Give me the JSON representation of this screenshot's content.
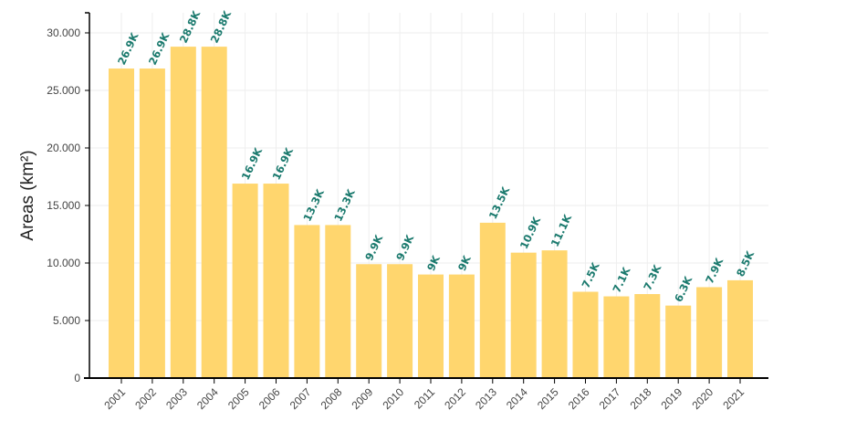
{
  "colors": {
    "bar": "#FFD66E",
    "label": "#1B7A6E",
    "grid": "#eeeeee",
    "axis": "#000000"
  },
  "chart_data": {
    "type": "bar",
    "ylabel": "Areas (km²)",
    "ylim": [
      0,
      32000
    ],
    "yticks": [
      0,
      5000,
      10000,
      15000,
      20000,
      25000,
      30000
    ],
    "ytick_labels": [
      "0",
      "5.000",
      "10.000",
      "15.000",
      "20.000",
      "25.000",
      "30.000"
    ],
    "grid": true,
    "categories": [
      "2001",
      "2002",
      "2003",
      "2004",
      "2005",
      "2006",
      "2007",
      "2008",
      "2009",
      "2010",
      "2011",
      "2012",
      "2013",
      "2014",
      "2015",
      "2016",
      "2017",
      "2018",
      "2019",
      "2020",
      "2021"
    ],
    "values": [
      26900,
      26900,
      28800,
      28800,
      16900,
      16900,
      13300,
      13300,
      9900,
      9900,
      9000,
      9000,
      13500,
      10900,
      11100,
      7500,
      7100,
      7300,
      6300,
      7900,
      8500
    ],
    "data_labels": [
      "26.9K",
      "26.9K",
      "28.8K",
      "28.8K",
      "16.9K",
      "16.9K",
      "13.3K",
      "13.3K",
      "9.9K",
      "9.9K",
      "9K",
      "9K",
      "13.5K",
      "10.9K",
      "11.1K",
      "7.5K",
      "7.1K",
      "7.3K",
      "6.3K",
      "7.9K",
      "8.5K"
    ]
  }
}
